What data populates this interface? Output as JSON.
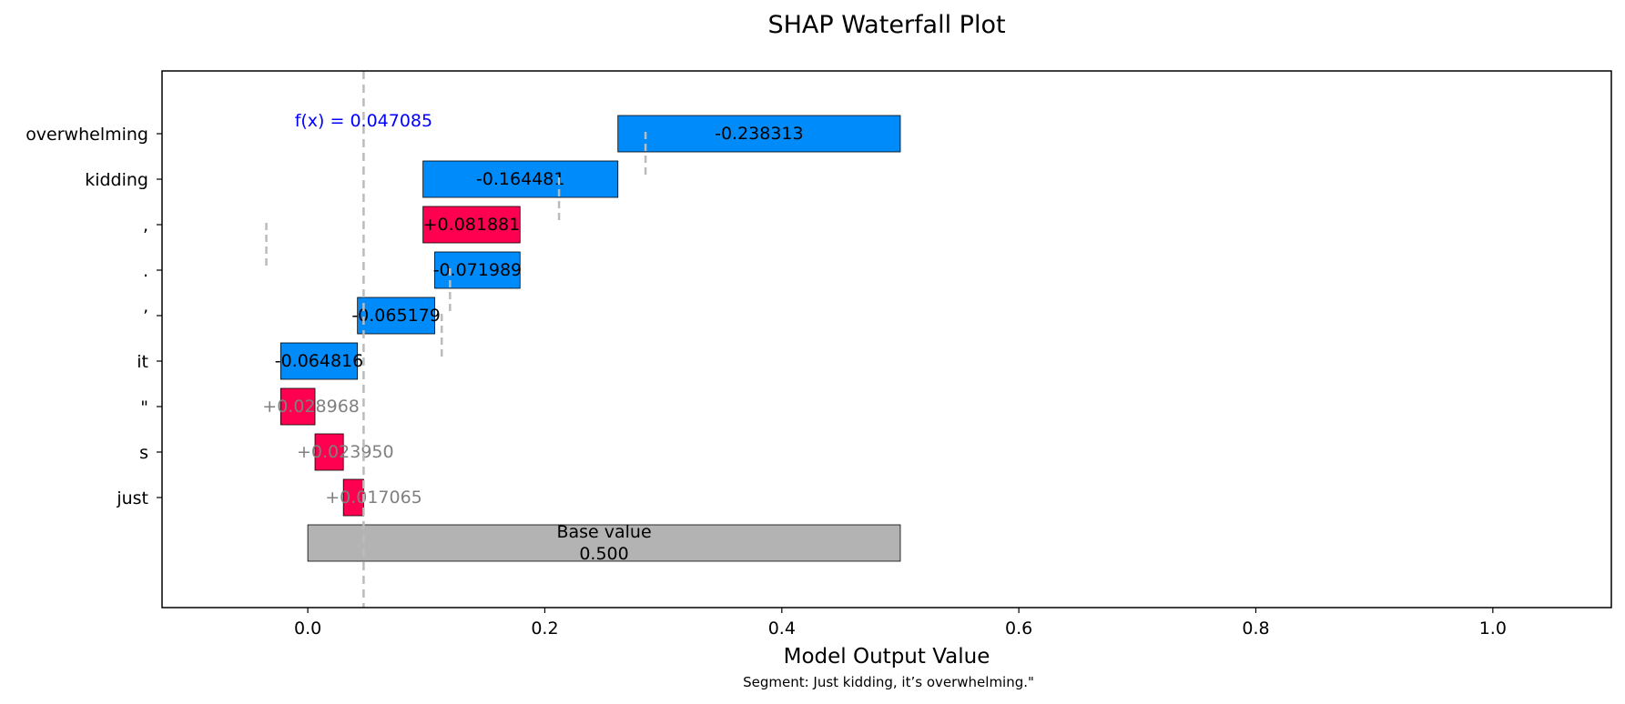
{
  "chart_data": {
    "type": "bar",
    "title": "SHAP Waterfall Plot",
    "xlabel": "Model Output Value",
    "subtitle": "Segment: Just kidding, it’s overwhelming.\"",
    "xlim": [
      -0.123,
      1.1
    ],
    "xticks": [
      0.0,
      0.2,
      0.4,
      0.6,
      0.8,
      1.0
    ],
    "xtick_labels": [
      "0.0",
      "0.2",
      "0.4",
      "0.6",
      "0.8",
      "1.0"
    ],
    "fx_value": 0.047085,
    "fx_label": "f(x) = 0.047085",
    "base": {
      "value": 0.5,
      "label_line1": "Base value",
      "label_line2": "0.500"
    },
    "features": [
      {
        "name": "overwhelming",
        "value": -0.238313,
        "start": 0.5,
        "end": 0.261687,
        "label": "-0.238313"
      },
      {
        "name": "kidding",
        "value": -0.164481,
        "start": 0.261687,
        "end": 0.097206,
        "label": "-0.164481"
      },
      {
        "name": ",",
        "value": 0.081881,
        "start": 0.097206,
        "end": 0.179087,
        "label": "+0.081881"
      },
      {
        "name": ".",
        "value": -0.071989,
        "start": 0.179087,
        "end": 0.107098,
        "label": "-0.071989"
      },
      {
        "name": "’",
        "value": -0.065179,
        "start": 0.107098,
        "end": 0.041919,
        "label": "-0.065179"
      },
      {
        "name": "it",
        "value": -0.064816,
        "start": 0.041919,
        "end": -0.022897,
        "label": "-0.064816"
      },
      {
        "name": "\"",
        "value": 0.028968,
        "start": -0.022897,
        "end": 0.006071,
        "label": "+0.028968"
      },
      {
        "name": "s",
        "value": 0.02395,
        "start": 0.006071,
        "end": 0.030021,
        "label": "+0.023950"
      },
      {
        "name": "just",
        "value": 0.017065,
        "start": 0.030021,
        "end": 0.047086,
        "label": "+0.017065"
      }
    ],
    "connector_x": [
      0.285,
      0.212,
      -0.035,
      0.12,
      0.113
    ],
    "colors": {
      "positive": "#ff0051",
      "negative": "#008bfb",
      "base": "#b3b3b3",
      "fx_line": "#bbbbbb",
      "fx_text": "#0000ff",
      "small_label": "#808080"
    },
    "grid": false,
    "legend": "none"
  }
}
